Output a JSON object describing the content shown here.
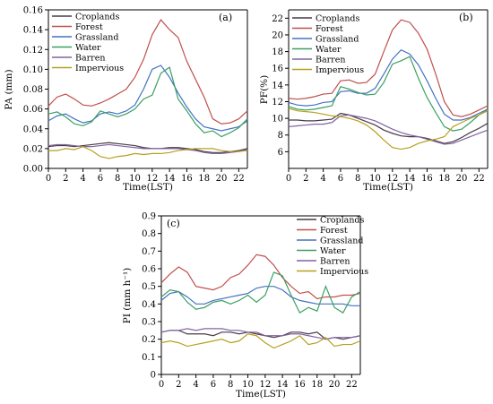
{
  "chart_data": [
    {
      "type": "line",
      "panel_label": "(a)",
      "xlabel": "Time(LST)",
      "ylabel": "PA (mm)",
      "x": [
        0,
        1,
        2,
        3,
        4,
        5,
        6,
        7,
        8,
        9,
        10,
        11,
        12,
        13,
        14,
        15,
        16,
        17,
        18,
        19,
        20,
        21,
        22,
        23
      ],
      "xlim": [
        0,
        23
      ],
      "ylim": [
        0,
        0.16
      ],
      "xticks": [
        0,
        2,
        4,
        6,
        8,
        10,
        12,
        14,
        16,
        18,
        20,
        22
      ],
      "yticks": [
        0,
        0.02,
        0.04,
        0.06,
        0.08,
        0.1,
        0.12,
        0.14,
        0.16
      ],
      "ytick_labels": [
        "0.00",
        "0.02",
        "0.04",
        "0.06",
        "0.08",
        "0.10",
        "0.12",
        "0.14",
        "0.16"
      ],
      "legend_position": "top-left",
      "series": [
        {
          "name": "Croplands",
          "color": "#4a3a48",
          "values": [
            0.022,
            0.023,
            0.023,
            0.022,
            0.023,
            0.024,
            0.025,
            0.026,
            0.025,
            0.024,
            0.023,
            0.021,
            0.02,
            0.02,
            0.021,
            0.021,
            0.02,
            0.019,
            0.017,
            0.016,
            0.016,
            0.017,
            0.018,
            0.02
          ]
        },
        {
          "name": "Forest",
          "color": "#c0504d",
          "values": [
            0.063,
            0.072,
            0.075,
            0.07,
            0.064,
            0.063,
            0.066,
            0.07,
            0.075,
            0.08,
            0.092,
            0.11,
            0.135,
            0.15,
            0.14,
            0.132,
            0.108,
            0.09,
            0.072,
            0.05,
            0.045,
            0.046,
            0.05,
            0.058
          ]
        },
        {
          "name": "Grassland",
          "color": "#4472c4",
          "values": [
            0.048,
            0.053,
            0.055,
            0.05,
            0.046,
            0.048,
            0.055,
            0.057,
            0.055,
            0.058,
            0.064,
            0.08,
            0.1,
            0.104,
            0.092,
            0.076,
            0.062,
            0.05,
            0.042,
            0.04,
            0.038,
            0.04,
            0.042,
            0.048
          ]
        },
        {
          "name": "Water",
          "color": "#3ca063",
          "values": [
            0.055,
            0.057,
            0.052,
            0.045,
            0.043,
            0.047,
            0.058,
            0.055,
            0.052,
            0.055,
            0.06,
            0.07,
            0.074,
            0.096,
            0.102,
            0.07,
            0.058,
            0.045,
            0.036,
            0.038,
            0.032,
            0.036,
            0.041,
            0.05
          ]
        },
        {
          "name": "Barren",
          "color": "#8064a2",
          "values": [
            0.023,
            0.024,
            0.024,
            0.023,
            0.022,
            0.022,
            0.023,
            0.024,
            0.023,
            0.022,
            0.021,
            0.02,
            0.02,
            0.02,
            0.02,
            0.02,
            0.019,
            0.018,
            0.016,
            0.015,
            0.015,
            0.016,
            0.017,
            0.019
          ]
        },
        {
          "name": "Impervious",
          "color": "#b8a01e",
          "values": [
            0.018,
            0.018,
            0.02,
            0.019,
            0.022,
            0.018,
            0.012,
            0.01,
            0.012,
            0.013,
            0.015,
            0.014,
            0.015,
            0.015,
            0.016,
            0.018,
            0.019,
            0.02,
            0.02,
            0.02,
            0.018,
            0.017,
            0.017,
            0.018
          ]
        }
      ]
    },
    {
      "type": "line",
      "panel_label": "(b)",
      "xlabel": "Time(LST)",
      "ylabel": "PF(%)",
      "x": [
        0,
        1,
        2,
        3,
        4,
        5,
        6,
        7,
        8,
        9,
        10,
        11,
        12,
        13,
        14,
        15,
        16,
        17,
        18,
        19,
        20,
        21,
        22,
        23
      ],
      "xlim": [
        0,
        23
      ],
      "ylim": [
        4,
        23
      ],
      "xticks": [
        0,
        2,
        4,
        6,
        8,
        10,
        12,
        14,
        16,
        18,
        20,
        22
      ],
      "yticks": [
        6,
        8,
        10,
        12,
        14,
        16,
        18,
        20,
        22
      ],
      "ytick_labels": [
        "6",
        "8",
        "10",
        "12",
        "14",
        "16",
        "18",
        "20",
        "22"
      ],
      "legend_position": "top-left",
      "series": [
        {
          "name": "Croplands",
          "color": "#4a3a48",
          "values": [
            9.8,
            9.8,
            9.7,
            9.7,
            9.8,
            9.9,
            10.6,
            10.4,
            10.0,
            9.6,
            9.2,
            8.6,
            8.2,
            7.9,
            7.8,
            7.8,
            7.6,
            7.3,
            7.0,
            7.2,
            7.7,
            8.3,
            8.8,
            9.4
          ]
        },
        {
          "name": "Forest",
          "color": "#c0504d",
          "values": [
            12.4,
            12.3,
            12.4,
            12.6,
            12.9,
            13.0,
            14.5,
            14.6,
            14.2,
            14.3,
            15.3,
            18.0,
            20.6,
            21.8,
            21.5,
            20.2,
            18.3,
            15.3,
            12.0,
            10.4,
            10.2,
            10.5,
            11.0,
            11.5
          ]
        },
        {
          "name": "Grassland",
          "color": "#4472c4",
          "values": [
            11.9,
            11.6,
            11.5,
            11.6,
            11.9,
            12.0,
            13.2,
            13.3,
            13.0,
            13.0,
            13.6,
            15.3,
            17.1,
            18.2,
            17.7,
            16.4,
            14.5,
            12.4,
            10.5,
            9.8,
            9.8,
            10.1,
            10.6,
            11.1
          ]
        },
        {
          "name": "Water",
          "color": "#3ca063",
          "values": [
            11.4,
            11.1,
            11.0,
            11.1,
            11.3,
            11.5,
            13.8,
            13.5,
            13.1,
            12.8,
            12.9,
            14.3,
            16.5,
            16.9,
            17.4,
            14.8,
            12.5,
            10.7,
            9.0,
            8.5,
            8.7,
            9.5,
            10.4,
            11.0
          ]
        },
        {
          "name": "Barren",
          "color": "#8064a2",
          "values": [
            9.0,
            9.1,
            9.2,
            9.3,
            9.3,
            9.5,
            10.3,
            10.4,
            10.2,
            10.0,
            9.7,
            9.2,
            8.7,
            8.3,
            8.0,
            7.8,
            7.5,
            7.2,
            6.9,
            7.0,
            7.4,
            7.8,
            8.2,
            8.6
          ]
        },
        {
          "name": "Impervious",
          "color": "#b8a01e",
          "values": [
            11.2,
            10.9,
            10.8,
            10.7,
            10.5,
            10.3,
            10.2,
            10.0,
            9.7,
            9.2,
            8.4,
            7.4,
            6.5,
            6.3,
            6.5,
            7.0,
            7.3,
            7.5,
            7.8,
            9.0,
            9.5,
            10.0,
            10.4,
            10.9
          ]
        }
      ]
    },
    {
      "type": "line",
      "panel_label": "(c)",
      "xlabel": "Time(LST)",
      "ylabel": "PI (mm h⁻¹)",
      "x": [
        0,
        1,
        2,
        3,
        4,
        5,
        6,
        7,
        8,
        9,
        10,
        11,
        12,
        13,
        14,
        15,
        16,
        17,
        18,
        19,
        20,
        21,
        22,
        23
      ],
      "xlim": [
        0,
        23
      ],
      "ylim": [
        0,
        0.9
      ],
      "xticks": [
        0,
        2,
        4,
        6,
        8,
        10,
        12,
        14,
        16,
        18,
        20,
        22
      ],
      "yticks": [
        0,
        0.1,
        0.2,
        0.3,
        0.4,
        0.5,
        0.6,
        0.7,
        0.8,
        0.9
      ],
      "ytick_labels": [
        "0",
        "0.1",
        "0.2",
        "0.3",
        "0.4",
        "0.5",
        "0.6",
        "0.7",
        "0.8",
        "0.9"
      ],
      "legend_position": "top-right",
      "series": [
        {
          "name": "Croplands",
          "color": "#4a3a48",
          "values": [
            0.24,
            0.25,
            0.25,
            0.23,
            0.23,
            0.23,
            0.22,
            0.24,
            0.24,
            0.23,
            0.24,
            0.23,
            0.22,
            0.21,
            0.22,
            0.24,
            0.24,
            0.23,
            0.24,
            0.2,
            0.21,
            0.2,
            0.21,
            0.22
          ]
        },
        {
          "name": "Forest",
          "color": "#c0504d",
          "values": [
            0.52,
            0.57,
            0.61,
            0.58,
            0.5,
            0.49,
            0.48,
            0.5,
            0.55,
            0.57,
            0.62,
            0.68,
            0.67,
            0.62,
            0.55,
            0.5,
            0.46,
            0.47,
            0.43,
            0.44,
            0.44,
            0.45,
            0.45,
            0.46
          ]
        },
        {
          "name": "Grassland",
          "color": "#4472c4",
          "values": [
            0.42,
            0.46,
            0.47,
            0.44,
            0.4,
            0.4,
            0.42,
            0.43,
            0.44,
            0.45,
            0.46,
            0.49,
            0.5,
            0.5,
            0.48,
            0.44,
            0.42,
            0.41,
            0.4,
            0.4,
            0.4,
            0.4,
            0.39,
            0.39
          ]
        },
        {
          "name": "Water",
          "color": "#3ca063",
          "values": [
            0.44,
            0.48,
            0.47,
            0.41,
            0.37,
            0.38,
            0.41,
            0.42,
            0.4,
            0.42,
            0.45,
            0.41,
            0.45,
            0.58,
            0.56,
            0.45,
            0.35,
            0.38,
            0.36,
            0.5,
            0.38,
            0.35,
            0.44,
            0.47
          ]
        },
        {
          "name": "Barren",
          "color": "#8064a2",
          "values": [
            0.24,
            0.25,
            0.25,
            0.26,
            0.25,
            0.26,
            0.26,
            0.26,
            0.25,
            0.25,
            0.24,
            0.24,
            0.22,
            0.22,
            0.22,
            0.23,
            0.23,
            0.22,
            0.21,
            0.2,
            0.21,
            0.21,
            0.21,
            0.22
          ]
        },
        {
          "name": "Impervious",
          "color": "#b8a01e",
          "values": [
            0.18,
            0.19,
            0.18,
            0.16,
            0.17,
            0.18,
            0.19,
            0.2,
            0.18,
            0.19,
            0.23,
            0.22,
            0.18,
            0.15,
            0.17,
            0.19,
            0.22,
            0.17,
            0.18,
            0.21,
            0.16,
            0.17,
            0.17,
            0.19
          ]
        }
      ]
    }
  ]
}
